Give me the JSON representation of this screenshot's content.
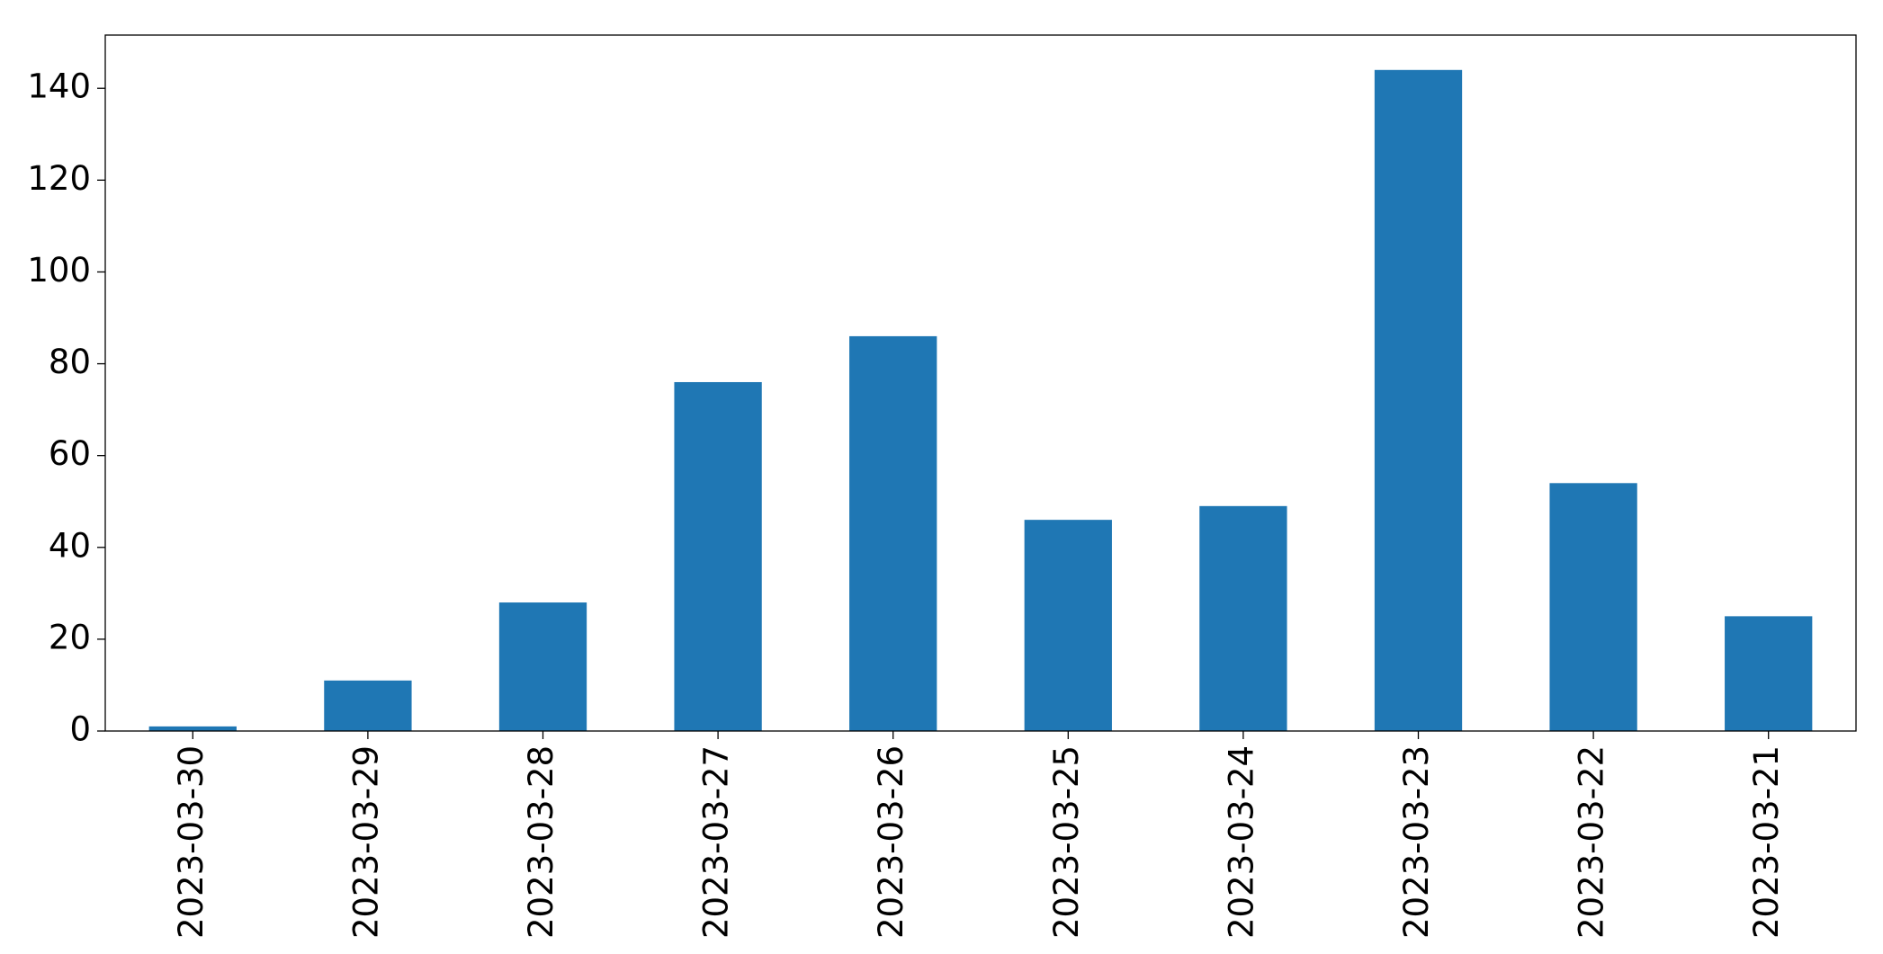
{
  "chart_data": {
    "type": "bar",
    "categories": [
      "2023-03-30",
      "2023-03-29",
      "2023-03-28",
      "2023-03-27",
      "2023-03-26",
      "2023-03-25",
      "2023-03-24",
      "2023-03-23",
      "2023-03-22",
      "2023-03-21"
    ],
    "values": [
      1,
      11,
      28,
      76,
      86,
      46,
      49,
      144,
      54,
      25
    ],
    "color": "#1f77b4",
    "ylim": [
      0,
      151.6
    ],
    "yticks": [
      0,
      20,
      40,
      60,
      80,
      100,
      120,
      140
    ],
    "grid": false
  }
}
